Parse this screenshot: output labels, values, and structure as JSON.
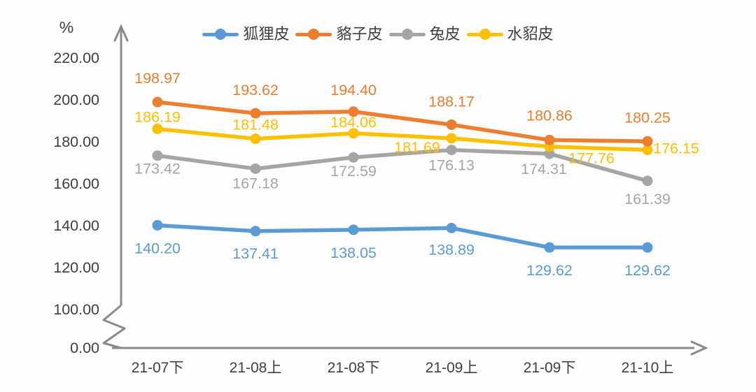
{
  "chart_data": {
    "type": "line",
    "title": "",
    "unit_label": "%",
    "categories": [
      "21-07下",
      "21-08上",
      "21-08下",
      "21-09上",
      "21-09下",
      "21-10上"
    ],
    "series": [
      {
        "name": "狐狸皮",
        "color": "#5B9BD5",
        "values": [
          140.2,
          137.41,
          138.05,
          138.89,
          129.62,
          129.62
        ]
      },
      {
        "name": "貉子皮",
        "color": "#ED7D31",
        "values": [
          198.97,
          193.62,
          194.4,
          188.17,
          180.86,
          180.25
        ]
      },
      {
        "name": "兔皮",
        "color": "#A5A5A5",
        "values": [
          173.42,
          167.18,
          172.59,
          176.13,
          174.31,
          161.39
        ]
      },
      {
        "name": "水貂皮",
        "color": "#FFC000",
        "values": [
          186.19,
          181.48,
          184.06,
          181.69,
          177.76,
          176.15
        ]
      }
    ],
    "y_axis": {
      "tick_labels": [
        "220.00",
        "200.00",
        "180.00",
        "160.00",
        "140.00",
        "120.00",
        "100.00",
        "0.00"
      ],
      "tick_values": [
        220,
        200,
        180,
        160,
        140,
        120,
        100,
        0
      ],
      "broken_axis": true
    },
    "x_axis": {
      "arrow": true
    },
    "legend_position": "top",
    "grid": false,
    "data_labels_shown": true,
    "axis_color": "#8a8a8a",
    "tick_label_color": "#3f3f3f"
  }
}
